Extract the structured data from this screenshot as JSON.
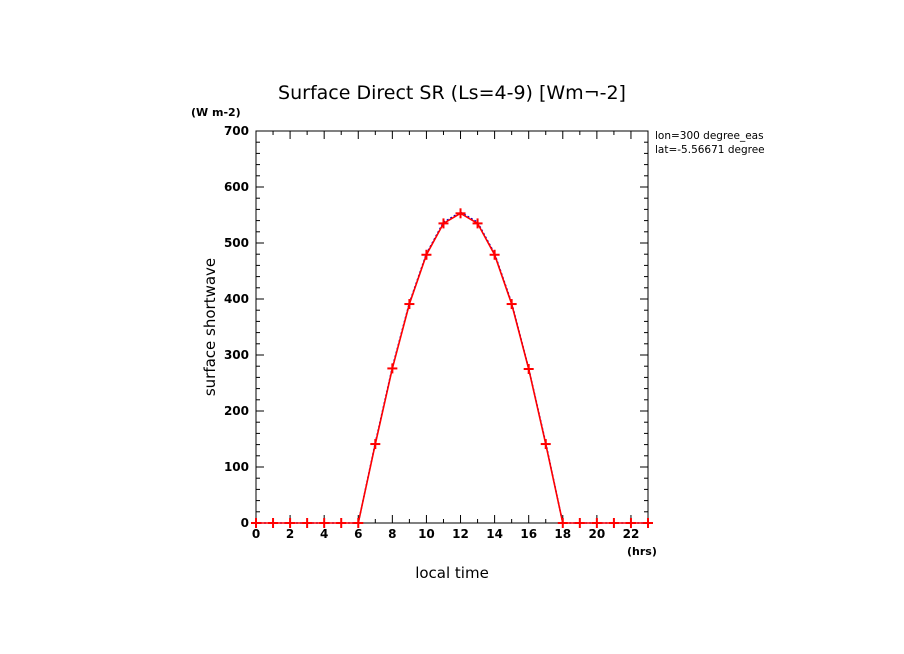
{
  "chart_data": {
    "type": "line",
    "title": "Surface Direct SR (Ls=4-9) [Wm¬-2]",
    "xlabel": "local time",
    "ylabel": "surface shortwave",
    "x_unit": "(hrs)",
    "y_unit": "(W m-2)",
    "xlim": [
      0,
      23
    ],
    "ylim": [
      0,
      700
    ],
    "x_ticks": [
      "0",
      "2",
      "4",
      "6",
      "8",
      "10",
      "12",
      "14",
      "16",
      "18",
      "20",
      "22"
    ],
    "y_ticks": [
      "0",
      "100",
      "200",
      "300",
      "400",
      "500",
      "600",
      "700"
    ],
    "grid": false,
    "annotations": [
      "lon=300 degree_eas",
      "lat=-5.56671 degree"
    ],
    "x": [
      0,
      1,
      2,
      3,
      4,
      5,
      6,
      7,
      8,
      9,
      10,
      11,
      12,
      13,
      14,
      15,
      16,
      17,
      18,
      19,
      20,
      21,
      22,
      23
    ],
    "series": [
      {
        "color": "#0000cc",
        "style": "dotted",
        "values": [
          0,
          0,
          0,
          0,
          0,
          0,
          0,
          143,
          278,
          393,
          481,
          537,
          555,
          537,
          481,
          393,
          276,
          143,
          0,
          0,
          0,
          0,
          0,
          0
        ]
      },
      {
        "color": "#ff0000",
        "style": "solid-plus",
        "values": [
          0,
          0,
          0,
          0,
          0,
          0,
          0,
          141,
          276,
          391,
          479,
          535,
          553,
          535,
          479,
          391,
          275,
          141,
          0,
          0,
          0,
          0,
          0,
          0
        ]
      }
    ]
  }
}
